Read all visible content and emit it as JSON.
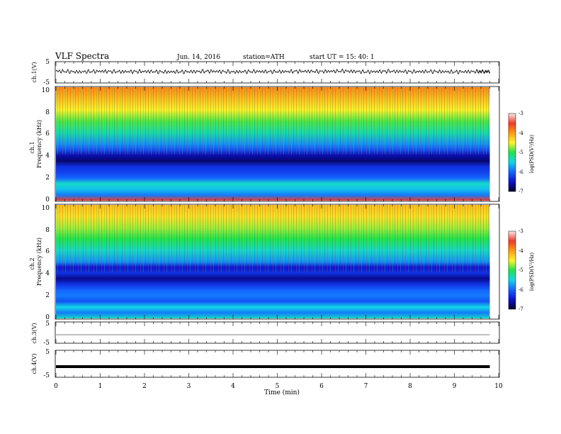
{
  "header": {
    "title": "VLF  Spectra",
    "date": "Jun. 14, 2016",
    "station": "station=ATH",
    "start": "start  UT  =    15: 40: 1"
  },
  "colorbar": {
    "label": "log(PSD(V²/Hz)",
    "ticks": [
      "-3",
      "-4",
      "-5",
      "-6",
      "-7"
    ],
    "stops": [
      "#fdeaea",
      "#ee3a2a",
      "#ff9b12",
      "#fff326",
      "#1ee64a",
      "#11d7e8",
      "#1464ff",
      "#0e10d0",
      "#02022a"
    ]
  },
  "xaxis": {
    "label": "Time  (min)",
    "ticks": [
      "0",
      "1",
      "2",
      "3",
      "4",
      "5",
      "6",
      "7",
      "8",
      "9",
      "10"
    ]
  },
  "chart_data": [
    {
      "type": "line",
      "panel": "ch1",
      "ylabel": "ch.1(V)",
      "ylim": [
        -5,
        5
      ],
      "yticks": [
        "5",
        "-5"
      ],
      "xlim": [
        0,
        10
      ],
      "x": [
        0,
        0.5,
        1,
        1.5,
        2,
        2.5,
        3,
        3.5,
        4,
        4.5,
        5,
        5.5,
        6,
        6.5,
        7,
        7.5,
        8,
        8.5,
        9,
        9.5,
        9.8
      ],
      "y": [
        0.6,
        0.2,
        0.5,
        0.3,
        0.4,
        0.2,
        0.3,
        0.5,
        0.2,
        0.4,
        0.3,
        0.5,
        0.4,
        0.6,
        0.2,
        0.5,
        0.3,
        0.4,
        0.2,
        0.4,
        0.3
      ]
    },
    {
      "type": "heatmap",
      "panel": "ch1-spectrogram",
      "ylabel_channel": "ch.1",
      "ylabel": "Frequency  (kHz)",
      "ylim": [
        0,
        10
      ],
      "yticks": [
        "0",
        "2",
        "4",
        "6",
        "8",
        "10"
      ],
      "xlim": [
        0,
        10
      ],
      "data_end_min": 9.8,
      "colorbar_range": [
        -7,
        -3
      ],
      "freq_khz": [
        10,
        9,
        8,
        7,
        6,
        5,
        4.5,
        4,
        3.5,
        3,
        2.5,
        2,
        1.5,
        1,
        0.5,
        0
      ],
      "log_psd": [
        -3.9,
        -4.2,
        -4.5,
        -4.9,
        -5.3,
        -5.8,
        -6.1,
        -6.6,
        -6.8,
        -6.3,
        -6.2,
        -6.0,
        -5.4,
        -5.6,
        -5.9,
        -3.5
      ]
    },
    {
      "type": "heatmap",
      "panel": "ch2-spectrogram",
      "ylabel_channel": "ch.2",
      "ylabel": "Frequency  (kHz)",
      "ylim": [
        0,
        10
      ],
      "yticks": [
        "0",
        "2",
        "4",
        "6",
        "8",
        "10"
      ],
      "xlim": [
        0,
        10
      ],
      "data_end_min": 9.8,
      "colorbar_range": [
        -7,
        -3
      ],
      "freq_khz": [
        10,
        9,
        8,
        7,
        6,
        5,
        4.5,
        4,
        3.5,
        3,
        2.5,
        2,
        1.5,
        1,
        0.5,
        0
      ],
      "log_psd": [
        -4.2,
        -4.4,
        -4.7,
        -5.0,
        -5.4,
        -5.8,
        -6.5,
        -6.3,
        -6.7,
        -6.3,
        -6.0,
        -5.9,
        -6.1,
        -5.5,
        -5.9,
        -5.4
      ]
    },
    {
      "type": "line",
      "panel": "ch3",
      "ylabel": "ch.3(V)",
      "ylim": [
        -5,
        5
      ],
      "yticks": [
        "5",
        "-5"
      ],
      "xlim": [
        0,
        10
      ],
      "x": [
        0,
        9.8
      ],
      "y": [
        0,
        0
      ]
    },
    {
      "type": "line",
      "panel": "ch4",
      "ylabel": "ch.4(V)",
      "ylim": [
        -5,
        5
      ],
      "yticks": [
        "5",
        "-5"
      ],
      "xlim": [
        0,
        10
      ],
      "x": [
        0,
        9.8
      ],
      "y": [
        0,
        0
      ]
    }
  ]
}
